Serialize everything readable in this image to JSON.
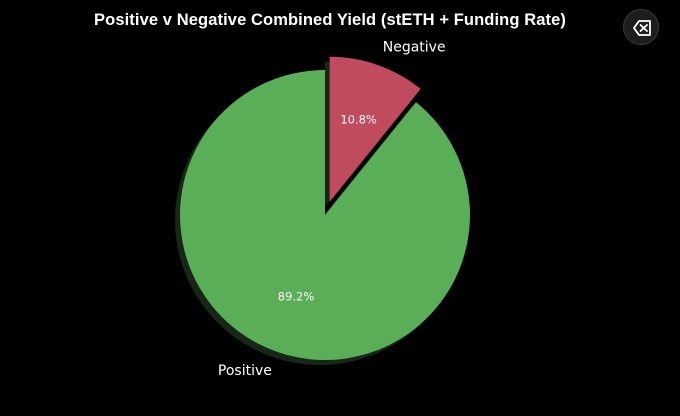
{
  "chart_data": {
    "type": "pie",
    "title": "Positive v Negative Combined Yield (stETH + Funding Rate)",
    "slices": [
      {
        "name": "Negative",
        "value": 10.8,
        "label": "10.8%",
        "color": "#c04b5e",
        "exploded": true
      },
      {
        "name": "Positive",
        "value": 89.2,
        "label": "89.2%",
        "color": "#59ae57",
        "exploded": false
      }
    ],
    "start_angle_deg": 90,
    "direction": "clockwise",
    "shadow": true,
    "background": "#000000"
  },
  "controls": {
    "expand_icon": "expand-collapse-icon"
  }
}
